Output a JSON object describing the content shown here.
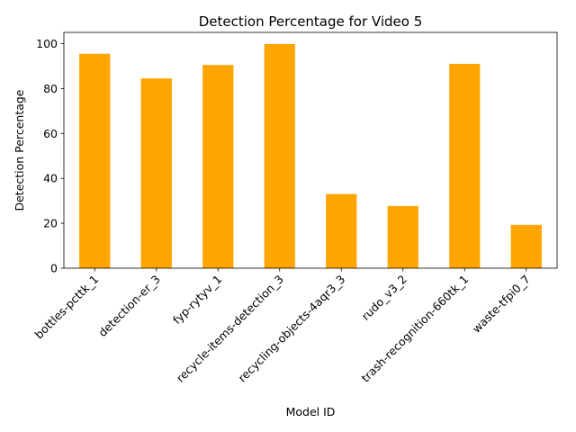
{
  "chart_data": {
    "type": "bar",
    "title": "Detection Percentage for Video 5",
    "xlabel": "Model ID",
    "ylabel": "Detection Percentage",
    "categories": [
      "bottles-pcttk_1",
      "detection-er_3",
      "fyp-rytyv_1",
      "recycle-items-detection_3",
      "recycling-objects-4aqr3_3",
      "rudo_v3_2",
      "trash-recognition-660tk_1",
      "waste-tfpi0_7"
    ],
    "values": [
      95.5,
      84.5,
      90.5,
      99.8,
      33.0,
      27.7,
      91.0,
      19.3
    ],
    "ylim": [
      0,
      105
    ],
    "yticks": [
      0,
      20,
      40,
      60,
      80,
      100
    ],
    "bar_color": "#FFA500",
    "grid": false,
    "legend": false
  }
}
